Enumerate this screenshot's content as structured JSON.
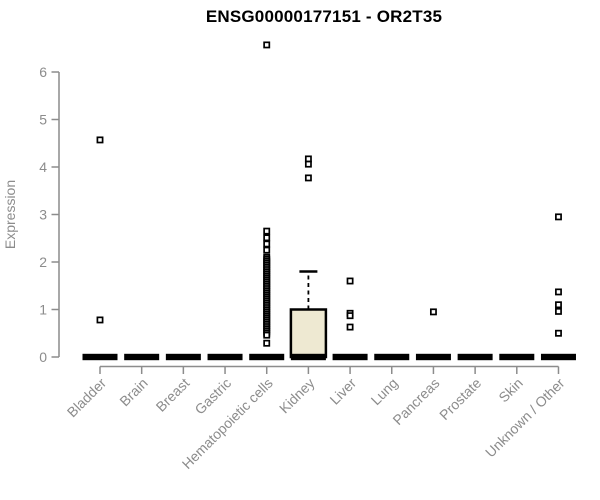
{
  "title": "ENSG00000177151 - OR2T35",
  "chart_data": {
    "type": "boxplot",
    "title": "ENSG00000177151 - OR2T35",
    "xlabel": "",
    "ylabel": "Expression",
    "ylim": [
      0,
      6.8
    ],
    "yticks": [
      0,
      1,
      2,
      3,
      4,
      5,
      6
    ],
    "grid": false,
    "legend": null,
    "categories": [
      "Bladder",
      "Brain",
      "Breast",
      "Gastric",
      "Hematopoietic cells",
      "Kidney",
      "Liver",
      "Lung",
      "Pancreas",
      "Prostate",
      "Skin",
      "Unknown / Other"
    ],
    "boxes": [
      {
        "category": "Bladder",
        "q1": 0,
        "median": 0,
        "q3": 0,
        "whisker_low": 0,
        "whisker_high": 0,
        "outliers": [
          4.57,
          0.78
        ]
      },
      {
        "category": "Brain",
        "q1": 0,
        "median": 0,
        "q3": 0,
        "whisker_low": 0,
        "whisker_high": 0,
        "outliers": []
      },
      {
        "category": "Breast",
        "q1": 0,
        "median": 0,
        "q3": 0,
        "whisker_low": 0,
        "whisker_high": 0,
        "outliers": []
      },
      {
        "category": "Gastric",
        "q1": 0,
        "median": 0,
        "q3": 0,
        "whisker_low": 0,
        "whisker_high": 0,
        "outliers": []
      },
      {
        "category": "Hematopoietic cells",
        "q1": 0,
        "median": 0,
        "q3": 0,
        "whisker_low": 0,
        "whisker_high": 0,
        "outliers": [
          6.57,
          2.65,
          2.51,
          2.38,
          2.25,
          2.1,
          2.06,
          2.02,
          1.98,
          1.94,
          1.9,
          1.86,
          1.82,
          1.78,
          1.74,
          1.7,
          1.66,
          1.62,
          1.58,
          1.54,
          1.5,
          1.46,
          1.42,
          1.38,
          1.34,
          1.3,
          1.26,
          1.22,
          1.18,
          1.14,
          1.1,
          1.06,
          1.02,
          0.98,
          0.94,
          0.9,
          0.86,
          0.82,
          0.78,
          0.74,
          0.7,
          0.66,
          0.62,
          0.58,
          0.54,
          0.5,
          0.46,
          0.29
        ]
      },
      {
        "category": "Kidney",
        "q1": 0,
        "median": 0,
        "q3": 1.0,
        "whisker_low": 0,
        "whisker_high": 1.8,
        "outliers": [
          4.17,
          4.06,
          3.77
        ]
      },
      {
        "category": "Liver",
        "q1": 0,
        "median": 0,
        "q3": 0,
        "whisker_low": 0,
        "whisker_high": 0,
        "outliers": [
          1.6,
          0.92,
          0.87,
          0.63
        ]
      },
      {
        "category": "Lung",
        "q1": 0,
        "median": 0,
        "q3": 0,
        "whisker_low": 0,
        "whisker_high": 0,
        "outliers": []
      },
      {
        "category": "Pancreas",
        "q1": 0,
        "median": 0,
        "q3": 0,
        "whisker_low": 0,
        "whisker_high": 0,
        "outliers": [
          0.95
        ]
      },
      {
        "category": "Prostate",
        "q1": 0,
        "median": 0,
        "q3": 0,
        "whisker_low": 0,
        "whisker_high": 0,
        "outliers": []
      },
      {
        "category": "Skin",
        "q1": 0,
        "median": 0,
        "q3": 0,
        "whisker_low": 0,
        "whisker_high": 0,
        "outliers": []
      },
      {
        "category": "Unknown / Other",
        "q1": 0,
        "median": 0,
        "q3": 0,
        "whisker_low": 0,
        "whisker_high": 0,
        "outliers": [
          2.95,
          1.37,
          1.1,
          0.96,
          0.5
        ]
      }
    ],
    "colors": {
      "box_fill": "#EEE9D2",
      "box_stroke": "#000000",
      "point_stroke": "#000000",
      "point_fill": "#FFFFFF",
      "axis": "#8C8C8C",
      "title": "#000000",
      "background": "#FFFFFF"
    }
  }
}
